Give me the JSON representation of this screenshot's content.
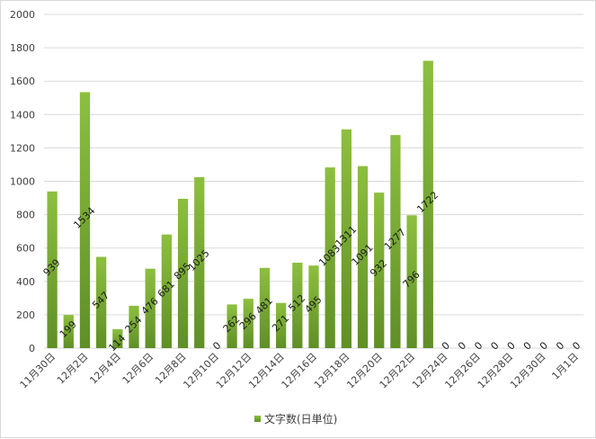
{
  "chart_data": {
    "type": "bar",
    "title": "",
    "xlabel": "",
    "ylabel": "",
    "ylim": [
      0,
      2000
    ],
    "yticks": [
      0,
      200,
      400,
      600,
      800,
      1000,
      1200,
      1400,
      1600,
      1800,
      2000
    ],
    "grid": true,
    "legend": "bottom",
    "bar_color": "#8dbf3f",
    "bar_color_dark": "#5f8f26",
    "categories": [
      "11月30日",
      "12月1日",
      "12月2日",
      "12月3日",
      "12月4日",
      "12月5日",
      "12月6日",
      "12月7日",
      "12月8日",
      "12月9日",
      "12月10日",
      "12月11日",
      "12月12日",
      "12月13日",
      "12月14日",
      "12月15日",
      "12月16日",
      "12月17日",
      "12月18日",
      "12月19日",
      "12月20日",
      "12月21日",
      "12月22日",
      "12月23日",
      "12月24日",
      "12月25日",
      "12月26日",
      "12月27日",
      "12月28日",
      "12月29日",
      "12月30日",
      "12月31日",
      "1月1日"
    ],
    "shown_tick_labels": [
      "11月30日",
      "12月2日",
      "12月4日",
      "12月6日",
      "12月8日",
      "12月10日",
      "12月12日",
      "12月14日",
      "12月16日",
      "12月18日",
      "12月20日",
      "12月22日",
      "12月24日",
      "12月26日",
      "12月28日",
      "12月30日",
      "1月1日"
    ],
    "series": [
      {
        "name": "文字数(日単位)",
        "values": [
          939,
          199,
          1534,
          547,
          114,
          254,
          476,
          681,
          895,
          1025,
          0,
          262,
          296,
          481,
          271,
          512,
          495,
          1083,
          1311,
          1091,
          932,
          1277,
          796,
          1722,
          0,
          0,
          0,
          0,
          0,
          0,
          0,
          0,
          0
        ]
      }
    ]
  }
}
